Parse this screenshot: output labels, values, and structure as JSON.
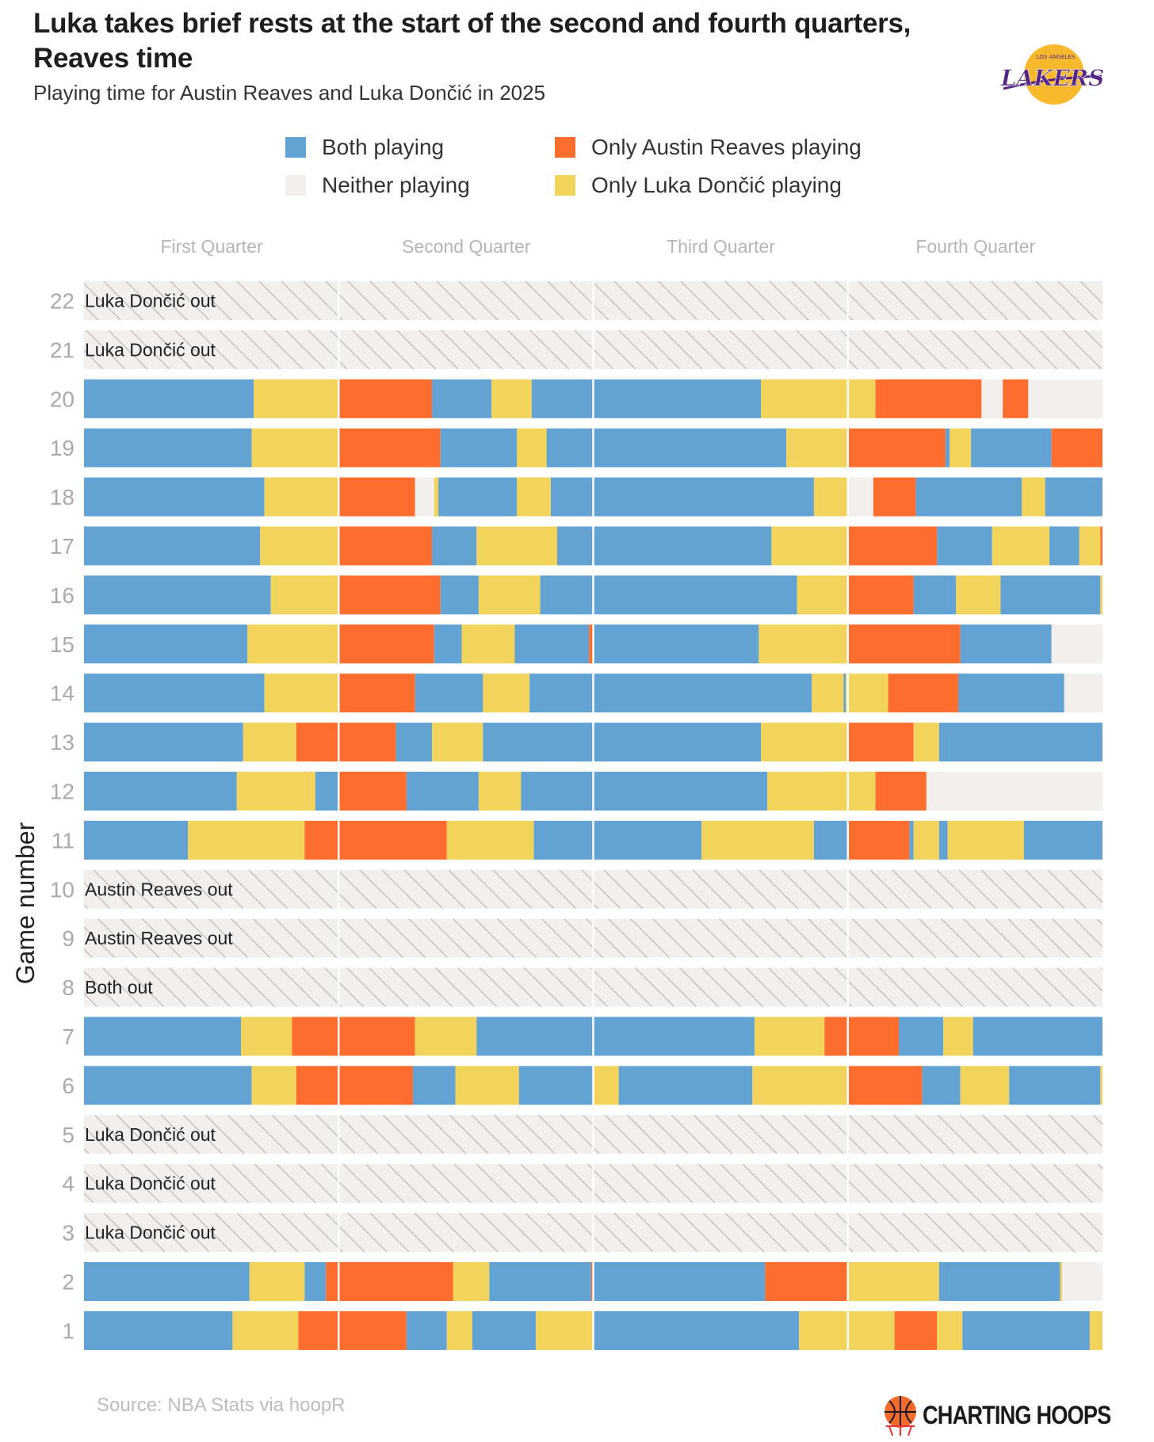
{
  "title": "Luka takes brief rests at the start of the second and fourth quarters, Reaves time",
  "subtitle": "Playing time for Austin Reaves and Luka Dončić in 2025",
  "logo_text": "LAKERS",
  "logo_subtext": "LOS ANGELES",
  "source": "Source: NBA Stats via hoopR",
  "brand": "CHARTING HOOPS",
  "colors": {
    "B": "#62a3d4",
    "R": "#fd6e2e",
    "L": "#f2d35b",
    "N": "#f2efed",
    "hatch": "#c9c6c3"
  },
  "chart_data": {
    "type": "bar",
    "title": "Luka takes brief rests at the start of the second and fourth quarters, Reaves time",
    "ylabel": "Game number",
    "xlabel": "",
    "x_unit": "game minutes",
    "xlim": [
      0,
      48
    ],
    "quarters": [
      "First Quarter",
      "Second Quarter",
      "Third Quarter",
      "Fourth Quarter"
    ],
    "legend": [
      {
        "key": "B",
        "label": "Both playing"
      },
      {
        "key": "N",
        "label": "Neither playing"
      },
      {
        "key": "R",
        "label": "Only Austin Reaves playing"
      },
      {
        "key": "L",
        "label": "Only Luka Dončić playing"
      }
    ],
    "legend_position": "top",
    "games": [
      {
        "game": "22",
        "out": "Luka Dončić out"
      },
      {
        "game": "21",
        "out": "Luka Dončić out"
      },
      {
        "game": "20",
        "segments": [
          [
            8.0,
            "B"
          ],
          [
            12,
            "L"
          ],
          [
            16.4,
            "R"
          ],
          [
            19.2,
            "B"
          ],
          [
            21.1,
            "L"
          ],
          [
            31.9,
            "B"
          ],
          [
            37.3,
            "L"
          ],
          [
            42.3,
            "R"
          ],
          [
            43.3,
            "N"
          ],
          [
            44.5,
            "R"
          ],
          [
            48,
            "N"
          ]
        ]
      },
      {
        "game": "19",
        "segments": [
          [
            7.9,
            "B"
          ],
          [
            12,
            "L"
          ],
          [
            16.8,
            "R"
          ],
          [
            20.4,
            "B"
          ],
          [
            21.8,
            "L"
          ],
          [
            33.1,
            "B"
          ],
          [
            36,
            "L"
          ],
          [
            40.6,
            "R"
          ],
          [
            40.8,
            "B"
          ],
          [
            41.8,
            "L"
          ],
          [
            45.6,
            "B"
          ],
          [
            48,
            "R"
          ]
        ]
      },
      {
        "game": "18",
        "segments": [
          [
            8.5,
            "B"
          ],
          [
            12,
            "L"
          ],
          [
            15.6,
            "R"
          ],
          [
            16.5,
            "N"
          ],
          [
            16.7,
            "L"
          ],
          [
            20.4,
            "B"
          ],
          [
            22.0,
            "L"
          ],
          [
            34.4,
            "B"
          ],
          [
            36,
            "L"
          ],
          [
            37.2,
            "N"
          ],
          [
            39.2,
            "R"
          ],
          [
            44.2,
            "B"
          ],
          [
            45.3,
            "L"
          ],
          [
            48,
            "B"
          ]
        ]
      },
      {
        "game": "17",
        "segments": [
          [
            8.3,
            "B"
          ],
          [
            12,
            "L"
          ],
          [
            16.4,
            "R"
          ],
          [
            18.5,
            "B"
          ],
          [
            22.3,
            "L"
          ],
          [
            32.4,
            "B"
          ],
          [
            36,
            "L"
          ],
          [
            40.2,
            "R"
          ],
          [
            42.8,
            "B"
          ],
          [
            45.5,
            "L"
          ],
          [
            46.9,
            "B"
          ],
          [
            47.9,
            "L"
          ],
          [
            48,
            "R"
          ]
        ]
      },
      {
        "game": "16",
        "segments": [
          [
            8.8,
            "B"
          ],
          [
            12,
            "L"
          ],
          [
            16.8,
            "R"
          ],
          [
            18.6,
            "B"
          ],
          [
            21.5,
            "L"
          ],
          [
            33.6,
            "B"
          ],
          [
            36,
            "L"
          ],
          [
            39.1,
            "R"
          ],
          [
            41.1,
            "B"
          ],
          [
            43.2,
            "L"
          ],
          [
            47.9,
            "B"
          ],
          [
            48,
            "L"
          ]
        ]
      },
      {
        "game": "15",
        "segments": [
          [
            7.7,
            "B"
          ],
          [
            12,
            "L"
          ],
          [
            16.5,
            "R"
          ],
          [
            17.8,
            "B"
          ],
          [
            20.3,
            "L"
          ],
          [
            23.8,
            "B"
          ],
          [
            24,
            "R"
          ],
          [
            31.8,
            "B"
          ],
          [
            36,
            "L"
          ],
          [
            41.3,
            "R"
          ],
          [
            45.6,
            "B"
          ],
          [
            48,
            "N"
          ]
        ]
      },
      {
        "game": "14",
        "segments": [
          [
            8.5,
            "B"
          ],
          [
            12,
            "L"
          ],
          [
            15.6,
            "R"
          ],
          [
            18.8,
            "B"
          ],
          [
            21.0,
            "L"
          ],
          [
            34.3,
            "B"
          ],
          [
            35.8,
            "L"
          ],
          [
            35.9,
            "B"
          ],
          [
            37.9,
            "L"
          ],
          [
            41.2,
            "R"
          ],
          [
            46.2,
            "B"
          ],
          [
            48,
            "N"
          ]
        ]
      },
      {
        "game": "13",
        "segments": [
          [
            7.5,
            "B"
          ],
          [
            10.0,
            "L"
          ],
          [
            14.7,
            "R"
          ],
          [
            16.4,
            "B"
          ],
          [
            18.8,
            "L"
          ],
          [
            31.9,
            "B"
          ],
          [
            36,
            "L"
          ],
          [
            39.1,
            "R"
          ],
          [
            40.3,
            "L"
          ],
          [
            48,
            "B"
          ]
        ]
      },
      {
        "game": "12",
        "segments": [
          [
            7.2,
            "B"
          ],
          [
            10.9,
            "L"
          ],
          [
            12,
            "B"
          ],
          [
            15.2,
            "R"
          ],
          [
            18.6,
            "B"
          ],
          [
            20.6,
            "L"
          ],
          [
            32.2,
            "B"
          ],
          [
            37.3,
            "L"
          ],
          [
            39.7,
            "R"
          ],
          [
            48,
            "N"
          ]
        ]
      },
      {
        "game": "11",
        "segments": [
          [
            4.9,
            "B"
          ],
          [
            10.4,
            "L"
          ],
          [
            17.1,
            "R"
          ],
          [
            21.2,
            "L"
          ],
          [
            29.1,
            "B"
          ],
          [
            34.4,
            "L"
          ],
          [
            36,
            "B"
          ],
          [
            38.9,
            "R"
          ],
          [
            39.1,
            "B"
          ],
          [
            40.3,
            "L"
          ],
          [
            40.7,
            "B"
          ],
          [
            44.3,
            "L"
          ],
          [
            48,
            "B"
          ]
        ]
      },
      {
        "game": "10",
        "out": "Austin Reaves out"
      },
      {
        "game": "9",
        "out": "Austin Reaves out"
      },
      {
        "game": "8",
        "out": "Both out"
      },
      {
        "game": "7",
        "segments": [
          [
            7.4,
            "B"
          ],
          [
            9.8,
            "L"
          ],
          [
            15.6,
            "R"
          ],
          [
            18.5,
            "L"
          ],
          [
            31.6,
            "B"
          ],
          [
            34.9,
            "L"
          ],
          [
            38.4,
            "R"
          ],
          [
            40.5,
            "B"
          ],
          [
            41.9,
            "L"
          ],
          [
            48,
            "B"
          ]
        ]
      },
      {
        "game": "6",
        "segments": [
          [
            7.9,
            "B"
          ],
          [
            10.0,
            "L"
          ],
          [
            15.5,
            "R"
          ],
          [
            17.5,
            "B"
          ],
          [
            20.5,
            "L"
          ],
          [
            24,
            "B"
          ],
          [
            25.2,
            "L"
          ],
          [
            31.5,
            "B"
          ],
          [
            36,
            "L"
          ],
          [
            39.5,
            "R"
          ],
          [
            41.3,
            "B"
          ],
          [
            43.6,
            "L"
          ],
          [
            47.9,
            "B"
          ],
          [
            48,
            "L"
          ]
        ]
      },
      {
        "game": "5",
        "out": "Luka Dončić out"
      },
      {
        "game": "4",
        "out": "Luka Dončić out"
      },
      {
        "game": "3",
        "out": "Luka Dončić out"
      },
      {
        "game": "2",
        "segments": [
          [
            7.8,
            "B"
          ],
          [
            10.4,
            "L"
          ],
          [
            11.4,
            "B"
          ],
          [
            17.4,
            "R"
          ],
          [
            19.1,
            "L"
          ],
          [
            23.9,
            "B"
          ],
          [
            24,
            "R"
          ],
          [
            32.1,
            "B"
          ],
          [
            36,
            "R"
          ],
          [
            40.3,
            "L"
          ],
          [
            46.0,
            "B"
          ],
          [
            46.1,
            "L"
          ],
          [
            48,
            "N"
          ]
        ]
      },
      {
        "game": "1",
        "segments": [
          [
            7.0,
            "B"
          ],
          [
            10.1,
            "L"
          ],
          [
            15.2,
            "R"
          ],
          [
            17.1,
            "B"
          ],
          [
            18.3,
            "L"
          ],
          [
            21.3,
            "B"
          ],
          [
            24,
            "L"
          ],
          [
            33.7,
            "B"
          ],
          [
            38.2,
            "L"
          ],
          [
            40.2,
            "R"
          ],
          [
            41.4,
            "L"
          ],
          [
            47.4,
            "B"
          ],
          [
            48,
            "L"
          ]
        ]
      }
    ]
  }
}
